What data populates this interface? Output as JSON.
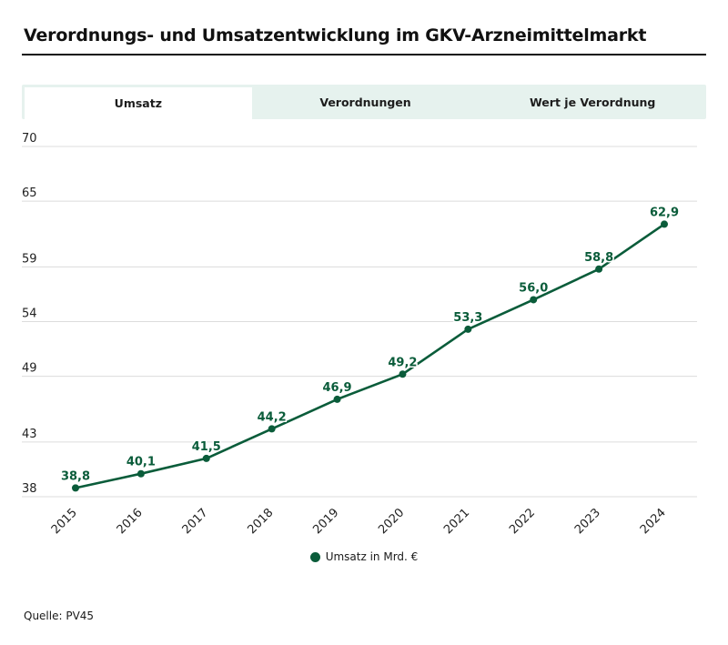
{
  "title": "Verordnungs- und Umsatzentwicklung im GKV-Arzneimittelmarkt",
  "tabs": [
    {
      "label": "Umsatz",
      "active": true
    },
    {
      "label": "Verordnungen",
      "active": false
    },
    {
      "label": "Wert je Verordnung",
      "active": false
    }
  ],
  "source": "Quelle: PV45",
  "colors": {
    "series": "#0a5c3a",
    "grid": "#dcdcdc",
    "tab_bg": "#e6f2ee"
  },
  "chart_data": {
    "type": "line",
    "title": "",
    "xlabel": "",
    "ylabel": "",
    "x": [
      "2015",
      "2016",
      "2017",
      "2018",
      "2019",
      "2020",
      "2021",
      "2022",
      "2023",
      "2024"
    ],
    "series": [
      {
        "name": "Umsatz in Mrd. €",
        "values": [
          38.8,
          40.1,
          41.5,
          44.2,
          46.9,
          49.2,
          53.3,
          56.0,
          58.8,
          62.9
        ],
        "labels": [
          "38,8",
          "40,1",
          "41,5",
          "44,2",
          "46,9",
          "49,2",
          "53,3",
          "56,0",
          "58,8",
          "62,9"
        ]
      }
    ],
    "ylim": [
      38,
      70
    ],
    "yticks": [
      38,
      43,
      49,
      54,
      59,
      65,
      70
    ],
    "grid": true,
    "legend": "bottom-center"
  }
}
